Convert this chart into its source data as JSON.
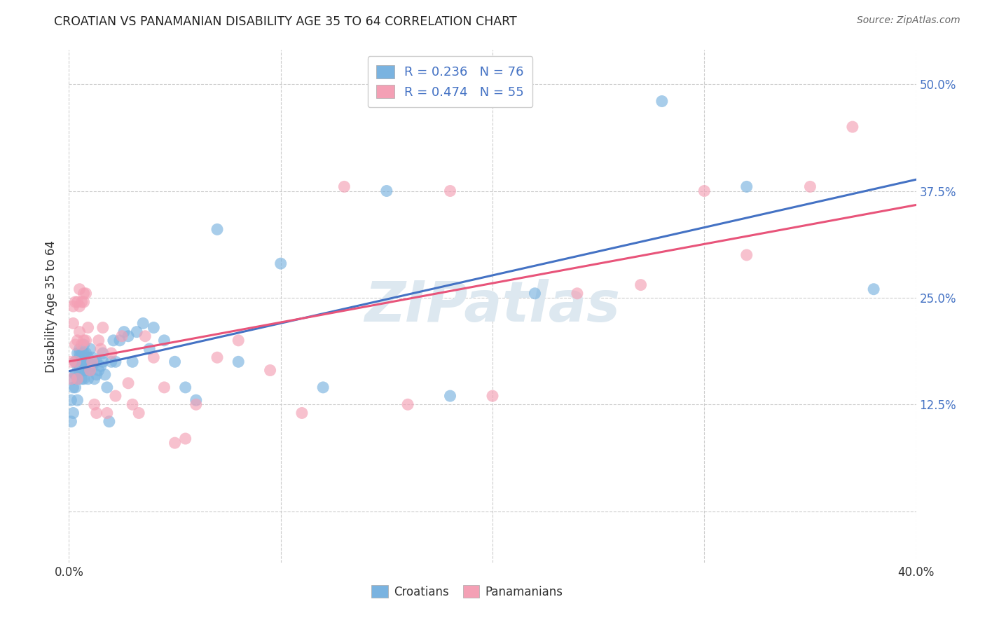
{
  "title": "CROATIAN VS PANAMANIAN DISABILITY AGE 35 TO 64 CORRELATION CHART",
  "source": "Source: ZipAtlas.com",
  "ylabel": "Disability Age 35 to 64",
  "xlim": [
    0.0,
    0.4
  ],
  "ylim": [
    -0.06,
    0.54
  ],
  "y_ticks": [
    0.0,
    0.125,
    0.25,
    0.375,
    0.5
  ],
  "y_tick_labels": [
    "",
    "12.5%",
    "25.0%",
    "37.5%",
    "50.0%"
  ],
  "croatian_R": 0.236,
  "croatian_N": 76,
  "panamanian_R": 0.474,
  "panamanian_N": 55,
  "croatian_color": "#7ab3e0",
  "panamanian_color": "#f4a0b5",
  "croatian_line_color": "#4472c4",
  "panamanian_line_color": "#e8547a",
  "legend_color": "#4472c4",
  "background_color": "#ffffff",
  "grid_color": "#cccccc",
  "title_color": "#222222",
  "source_color": "#666666",
  "watermark_color": "#dde8f0",
  "croatian_x": [
    0.001,
    0.001,
    0.002,
    0.002,
    0.002,
    0.003,
    0.003,
    0.003,
    0.003,
    0.003,
    0.004,
    0.004,
    0.004,
    0.004,
    0.004,
    0.005,
    0.005,
    0.005,
    0.005,
    0.005,
    0.006,
    0.006,
    0.006,
    0.006,
    0.007,
    0.007,
    0.007,
    0.007,
    0.007,
    0.008,
    0.008,
    0.008,
    0.009,
    0.009,
    0.009,
    0.01,
    0.01,
    0.01,
    0.011,
    0.011,
    0.012,
    0.012,
    0.013,
    0.013,
    0.014,
    0.015,
    0.016,
    0.016,
    0.017,
    0.018,
    0.019,
    0.02,
    0.021,
    0.022,
    0.024,
    0.026,
    0.028,
    0.03,
    0.032,
    0.035,
    0.038,
    0.04,
    0.045,
    0.05,
    0.055,
    0.06,
    0.07,
    0.08,
    0.1,
    0.12,
    0.15,
    0.18,
    0.22,
    0.28,
    0.32,
    0.38
  ],
  "croatian_y": [
    0.13,
    0.105,
    0.155,
    0.115,
    0.145,
    0.16,
    0.175,
    0.145,
    0.16,
    0.175,
    0.13,
    0.155,
    0.17,
    0.175,
    0.185,
    0.165,
    0.175,
    0.18,
    0.185,
    0.19,
    0.155,
    0.165,
    0.175,
    0.185,
    0.155,
    0.165,
    0.175,
    0.185,
    0.195,
    0.165,
    0.17,
    0.185,
    0.155,
    0.165,
    0.18,
    0.165,
    0.175,
    0.19,
    0.17,
    0.18,
    0.155,
    0.175,
    0.16,
    0.175,
    0.165,
    0.17,
    0.185,
    0.175,
    0.16,
    0.145,
    0.105,
    0.175,
    0.2,
    0.175,
    0.2,
    0.21,
    0.205,
    0.175,
    0.21,
    0.22,
    0.19,
    0.215,
    0.2,
    0.175,
    0.145,
    0.13,
    0.33,
    0.175,
    0.29,
    0.145,
    0.375,
    0.135,
    0.255,
    0.48,
    0.38,
    0.26
  ],
  "panamanian_x": [
    0.001,
    0.001,
    0.002,
    0.002,
    0.003,
    0.003,
    0.003,
    0.004,
    0.004,
    0.004,
    0.005,
    0.005,
    0.005,
    0.006,
    0.006,
    0.007,
    0.007,
    0.007,
    0.008,
    0.008,
    0.009,
    0.01,
    0.011,
    0.012,
    0.013,
    0.014,
    0.015,
    0.016,
    0.018,
    0.02,
    0.022,
    0.025,
    0.028,
    0.03,
    0.033,
    0.036,
    0.04,
    0.045,
    0.05,
    0.055,
    0.06,
    0.07,
    0.08,
    0.095,
    0.11,
    0.13,
    0.16,
    0.18,
    0.2,
    0.24,
    0.27,
    0.3,
    0.32,
    0.35,
    0.37
  ],
  "panamanian_y": [
    0.155,
    0.175,
    0.22,
    0.24,
    0.175,
    0.195,
    0.245,
    0.155,
    0.2,
    0.245,
    0.21,
    0.24,
    0.26,
    0.195,
    0.245,
    0.2,
    0.245,
    0.255,
    0.2,
    0.255,
    0.215,
    0.165,
    0.175,
    0.125,
    0.115,
    0.2,
    0.19,
    0.215,
    0.115,
    0.185,
    0.135,
    0.205,
    0.15,
    0.125,
    0.115,
    0.205,
    0.18,
    0.145,
    0.08,
    0.085,
    0.125,
    0.18,
    0.2,
    0.165,
    0.115,
    0.38,
    0.125,
    0.375,
    0.135,
    0.255,
    0.265,
    0.375,
    0.3,
    0.38,
    0.45
  ]
}
